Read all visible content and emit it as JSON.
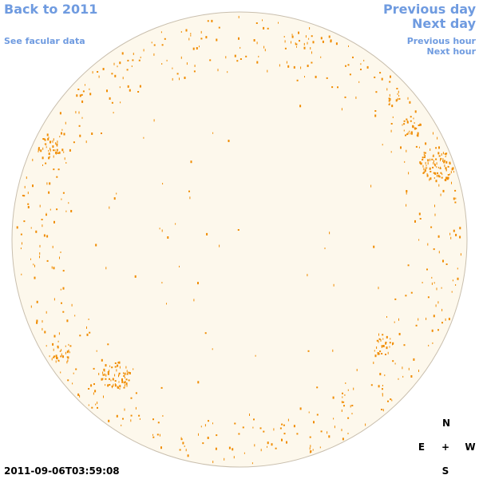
{
  "nav": {
    "back_label": "Back to 2011",
    "facular_label": "See facular data",
    "prev_day_label": "Previous day",
    "next_day_label": "Next day",
    "prev_hour_label": "Previous hour",
    "next_hour_label": "Next hour"
  },
  "timestamp": "2011-09-06T03:59:08",
  "compass": {
    "north": "N",
    "south": "S",
    "east": "E",
    "west": "W",
    "center": "+"
  },
  "colors": {
    "disk_fill": "#fdf8ec",
    "disk_stroke": "#c9bfae",
    "feature": "#f08c00",
    "link": "#6f9be0"
  }
}
